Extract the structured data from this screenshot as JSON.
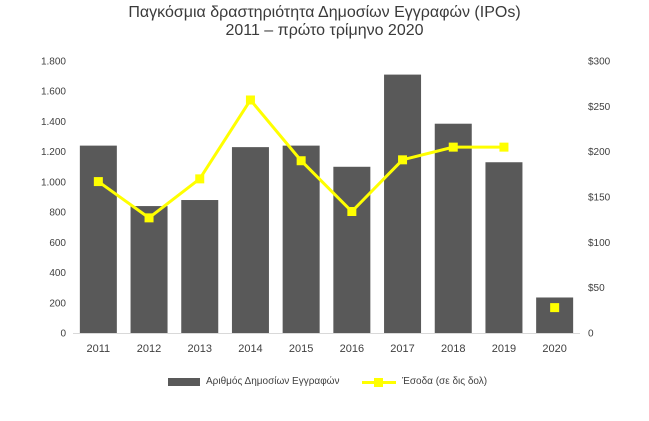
{
  "chart_data": {
    "type": "bar",
    "title": "Παγκόσμια δραστηριότητα Δημοσίων Εγγραφών (IPOs)",
    "subtitle": "2011 – πρώτο τρίμηνο 2020",
    "categories": [
      "2011",
      "2012",
      "2013",
      "2014",
      "2015",
      "2016",
      "2017",
      "2018",
      "2019",
      "2020"
    ],
    "series": [
      {
        "name": "Αριθμός Δημοσίων Εγγραφών",
        "type": "bar",
        "axis": "left",
        "color": "#595959",
        "values": [
          1240,
          840,
          880,
          1230,
          1240,
          1100,
          1710,
          1385,
          1130,
          235
        ]
      },
      {
        "name": "Έσοδα (σε δις δολ)",
        "type": "line",
        "axis": "right",
        "color": "#ffff00",
        "values": [
          167,
          127,
          170,
          257,
          190,
          134,
          191,
          205,
          205,
          28
        ],
        "connected_points": 9
      }
    ],
    "y_left": {
      "ylim": [
        0,
        1800
      ],
      "ticks": [
        0,
        200,
        400,
        600,
        800,
        1000,
        1200,
        1400,
        1600,
        1800
      ],
      "tick_labels": [
        "0",
        "200",
        "400",
        "600",
        "800",
        "1.000",
        "1.200",
        "1.400",
        "1.600",
        "1.800"
      ]
    },
    "y_right": {
      "ylim": [
        0,
        300
      ],
      "ticks": [
        0,
        50,
        100,
        150,
        200,
        250,
        300
      ],
      "tick_labels": [
        "0",
        "$50",
        "$100",
        "$150",
        "$200",
        "$250",
        "$300"
      ]
    },
    "grid": false,
    "legend_position": "bottom"
  }
}
